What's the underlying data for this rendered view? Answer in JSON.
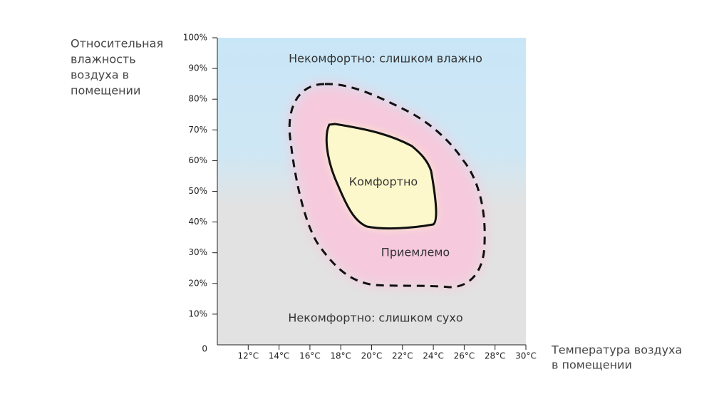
{
  "chart_data": {
    "type": "region",
    "y_title": [
      "Относительная",
      "влажность",
      "воздуха в",
      "помещении"
    ],
    "x_title": [
      "Температура  воздуха",
      "в помещении"
    ],
    "xlim": [
      10,
      30
    ],
    "xticks": [
      {
        "value": 12,
        "label": "12°C"
      },
      {
        "value": 14,
        "label": "14°C"
      },
      {
        "value": 16,
        "label": "16°C"
      },
      {
        "value": 18,
        "label": "18°C"
      },
      {
        "value": 20,
        "label": "20°C"
      },
      {
        "value": 22,
        "label": "22°C"
      },
      {
        "value": 24,
        "label": "24°C"
      },
      {
        "value": 26,
        "label": "26°C"
      },
      {
        "value": 28,
        "label": "28°C"
      },
      {
        "value": 30,
        "label": "30°C"
      }
    ],
    "ylim": [
      0,
      100
    ],
    "yticks": [
      0,
      {
        "value": 10,
        "label": "10%"
      },
      {
        "value": 20,
        "label": "20%"
      },
      {
        "value": 30,
        "label": "30%"
      },
      {
        "value": 40,
        "label": "40%"
      },
      {
        "value": 50,
        "label": "50%"
      },
      {
        "value": 60,
        "label": "60%"
      },
      {
        "value": 70,
        "label": "70%"
      },
      {
        "value": 80,
        "label": "80%"
      },
      {
        "value": 90,
        "label": "90%"
      },
      {
        "value": 100,
        "label": "100%"
      }
    ],
    "regions": [
      "Некомфортно: слишком влажно",
      "Комфортно",
      "Приемлемо",
      "Некомфортно: слишком сухо"
    ]
  }
}
